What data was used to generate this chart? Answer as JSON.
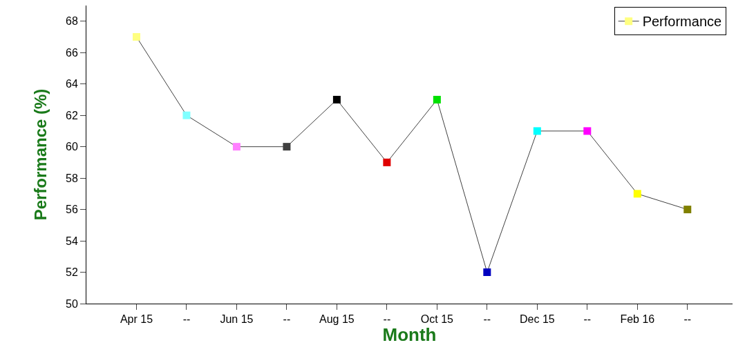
{
  "chart_data": {
    "type": "line",
    "xlabel": "Month",
    "ylabel": "Performance (%)",
    "categories": [
      "Apr 15",
      "--",
      "Jun 15",
      "--",
      "Aug 15",
      "--",
      "Oct 15",
      "--",
      "Dec 15",
      "--",
      "Feb 16",
      "--"
    ],
    "series": [
      {
        "name": "Performance",
        "color": "#404040",
        "values": [
          67,
          62,
          60,
          60,
          63,
          59,
          63,
          52,
          61,
          61,
          57,
          56
        ],
        "colors": [
          "#ffff80",
          "#80ffff",
          "#ff80ff",
          "#404040",
          "#000000",
          "#e00000",
          "#00e000",
          "#0000c0",
          "#00ffff",
          "#ff00ff",
          "#ffff00",
          "#808000"
        ]
      }
    ],
    "ylim": [
      50,
      69
    ],
    "yticks": [
      50,
      52,
      54,
      56,
      58,
      60,
      62,
      64,
      66,
      68
    ],
    "grid": false,
    "legend": "top right",
    "marker": "square",
    "line_style": "solid"
  }
}
